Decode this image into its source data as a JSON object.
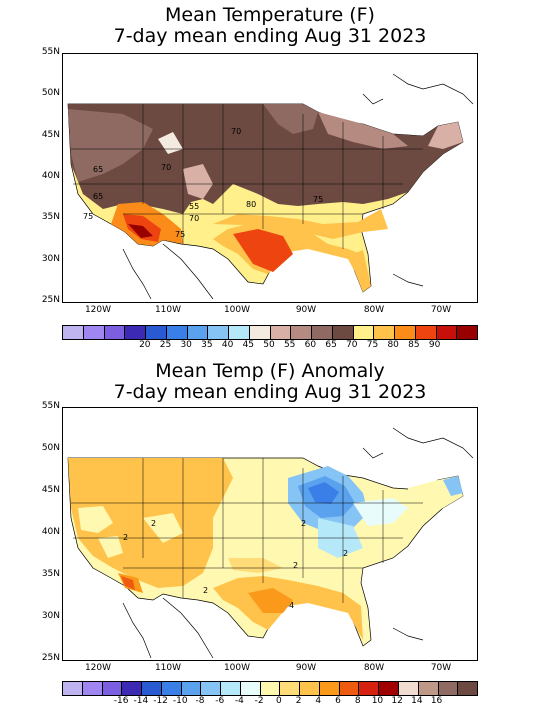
{
  "map1": {
    "title_line1": "Mean Temperature (F)",
    "title_line2": "7-day mean ending Aug 31 2023",
    "lat_labels": [
      "55N",
      "50N",
      "45N",
      "40N",
      "35N",
      "30N",
      "25N"
    ],
    "lon_labels": [
      "120W",
      "110W",
      "100W",
      "90W",
      "80W",
      "70W"
    ],
    "contour_labels": [
      "65",
      "65",
      "70",
      "70",
      "55",
      "70",
      "75",
      "80",
      "75",
      "75"
    ],
    "colorbar_colors": [
      "#c0b4f0",
      "#9f86f0",
      "#7c5fe0",
      "#3c2ab4",
      "#2a5ad2",
      "#3a7fe8",
      "#5ba2ee",
      "#85c4f4",
      "#b5e8f8",
      "#f4ebe0",
      "#d9b0a6",
      "#b58a80",
      "#8e6a62",
      "#6c4a42",
      "#fff08c",
      "#ffc24a",
      "#fb8c1a",
      "#ee4410",
      "#c8100a",
      "#980000"
    ],
    "colorbar_labels": [
      "20",
      "25",
      "30",
      "35",
      "40",
      "45",
      "50",
      "55",
      "60",
      "65",
      "70",
      "75",
      "80",
      "85",
      "90"
    ]
  },
  "map2": {
    "title_line1": "Mean Temp (F) Anomaly",
    "title_line2": "7-day mean ending Aug 31 2023",
    "lat_labels": [
      "55N",
      "50N",
      "45N",
      "40N",
      "35N",
      "30N",
      "25N"
    ],
    "lon_labels": [
      "120W",
      "110W",
      "100W",
      "90W",
      "80W",
      "70W"
    ],
    "contour_labels": [
      "2",
      "2",
      "2",
      "2",
      "2",
      "2",
      "4"
    ],
    "colorbar_colors": [
      "#c0b4f0",
      "#9f86f0",
      "#7c5fe0",
      "#3c2ab4",
      "#2a5ad2",
      "#3a7fe8",
      "#5ba2ee",
      "#85c4f4",
      "#b5e8f8",
      "#e8fcfc",
      "#fff8b0",
      "#ffdc78",
      "#ffc24a",
      "#fb9a1a",
      "#ee5a10",
      "#d62010",
      "#a00000",
      "#f0dcd0",
      "#c09888",
      "#8e6a62",
      "#6c4a42"
    ],
    "colorbar_labels": [
      "-16",
      "-14",
      "-12",
      "-10",
      "-8",
      "-6",
      "-4",
      "-2",
      "0",
      "2",
      "4",
      "6",
      "8",
      "10",
      "12",
      "14",
      "16"
    ]
  }
}
